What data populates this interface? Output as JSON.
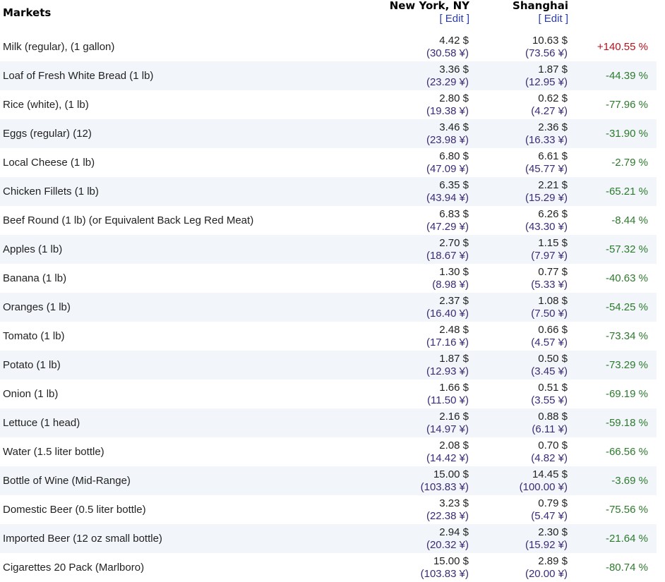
{
  "header": {
    "section_title": "Markets",
    "city1": "New York, NY",
    "city2": "Shanghai",
    "edit_label": "[ Edit ]"
  },
  "rows": [
    {
      "item": "Milk (regular), (1 gallon)",
      "ny_usd": "4.42 $",
      "ny_yuan": "(30.58 ¥)",
      "sh_usd": "10.63 $",
      "sh_yuan": "(73.56 ¥)",
      "diff": "+140.55 %"
    },
    {
      "item": "Loaf of Fresh White Bread (1 lb)",
      "ny_usd": "3.36 $",
      "ny_yuan": "(23.29 ¥)",
      "sh_usd": "1.87 $",
      "sh_yuan": "(12.95 ¥)",
      "diff": "-44.39 %"
    },
    {
      "item": "Rice (white), (1 lb)",
      "ny_usd": "2.80 $",
      "ny_yuan": "(19.38 ¥)",
      "sh_usd": "0.62 $",
      "sh_yuan": "(4.27 ¥)",
      "diff": "-77.96 %"
    },
    {
      "item": "Eggs (regular) (12)",
      "ny_usd": "3.46 $",
      "ny_yuan": "(23.98 ¥)",
      "sh_usd": "2.36 $",
      "sh_yuan": "(16.33 ¥)",
      "diff": "-31.90 %"
    },
    {
      "item": "Local Cheese (1 lb)",
      "ny_usd": "6.80 $",
      "ny_yuan": "(47.09 ¥)",
      "sh_usd": "6.61 $",
      "sh_yuan": "(45.77 ¥)",
      "diff": "-2.79 %"
    },
    {
      "item": "Chicken Fillets (1 lb)",
      "ny_usd": "6.35 $",
      "ny_yuan": "(43.94 ¥)",
      "sh_usd": "2.21 $",
      "sh_yuan": "(15.29 ¥)",
      "diff": "-65.21 %"
    },
    {
      "item": "Beef Round (1 lb) (or Equivalent Back Leg Red Meat)",
      "ny_usd": "6.83 $",
      "ny_yuan": "(47.29 ¥)",
      "sh_usd": "6.26 $",
      "sh_yuan": "(43.30 ¥)",
      "diff": "-8.44 %"
    },
    {
      "item": "Apples (1 lb)",
      "ny_usd": "2.70 $",
      "ny_yuan": "(18.67 ¥)",
      "sh_usd": "1.15 $",
      "sh_yuan": "(7.97 ¥)",
      "diff": "-57.32 %"
    },
    {
      "item": "Banana (1 lb)",
      "ny_usd": "1.30 $",
      "ny_yuan": "(8.98 ¥)",
      "sh_usd": "0.77 $",
      "sh_yuan": "(5.33 ¥)",
      "diff": "-40.63 %"
    },
    {
      "item": "Oranges (1 lb)",
      "ny_usd": "2.37 $",
      "ny_yuan": "(16.40 ¥)",
      "sh_usd": "1.08 $",
      "sh_yuan": "(7.50 ¥)",
      "diff": "-54.25 %"
    },
    {
      "item": "Tomato (1 lb)",
      "ny_usd": "2.48 $",
      "ny_yuan": "(17.16 ¥)",
      "sh_usd": "0.66 $",
      "sh_yuan": "(4.57 ¥)",
      "diff": "-73.34 %"
    },
    {
      "item": "Potato (1 lb)",
      "ny_usd": "1.87 $",
      "ny_yuan": "(12.93 ¥)",
      "sh_usd": "0.50 $",
      "sh_yuan": "(3.45 ¥)",
      "diff": "-73.29 %"
    },
    {
      "item": "Onion (1 lb)",
      "ny_usd": "1.66 $",
      "ny_yuan": "(11.50 ¥)",
      "sh_usd": "0.51 $",
      "sh_yuan": "(3.55 ¥)",
      "diff": "-69.19 %"
    },
    {
      "item": "Lettuce (1 head)",
      "ny_usd": "2.16 $",
      "ny_yuan": "(14.97 ¥)",
      "sh_usd": "0.88 $",
      "sh_yuan": "(6.11 ¥)",
      "diff": "-59.18 %"
    },
    {
      "item": "Water (1.5 liter bottle)",
      "ny_usd": "2.08 $",
      "ny_yuan": "(14.42 ¥)",
      "sh_usd": "0.70 $",
      "sh_yuan": "(4.82 ¥)",
      "diff": "-66.56 %"
    },
    {
      "item": "Bottle of Wine (Mid-Range)",
      "ny_usd": "15.00 $",
      "ny_yuan": "(103.83 ¥)",
      "sh_usd": "14.45 $",
      "sh_yuan": "(100.00 ¥)",
      "diff": "-3.69 %"
    },
    {
      "item": "Domestic Beer (0.5 liter bottle)",
      "ny_usd": "3.23 $",
      "ny_yuan": "(22.38 ¥)",
      "sh_usd": "0.79 $",
      "sh_yuan": "(5.47 ¥)",
      "diff": "-75.56 %"
    },
    {
      "item": "Imported Beer (12 oz small bottle)",
      "ny_usd": "2.94 $",
      "ny_yuan": "(20.32 ¥)",
      "sh_usd": "2.30 $",
      "sh_yuan": "(15.92 ¥)",
      "diff": "-21.64 %"
    },
    {
      "item": "Cigarettes 20 Pack (Marlboro)",
      "ny_usd": "15.00 $",
      "ny_yuan": "(103.83 ¥)",
      "sh_usd": "2.89 $",
      "sh_yuan": "(20.00 ¥)",
      "diff": "-80.74 %"
    }
  ]
}
